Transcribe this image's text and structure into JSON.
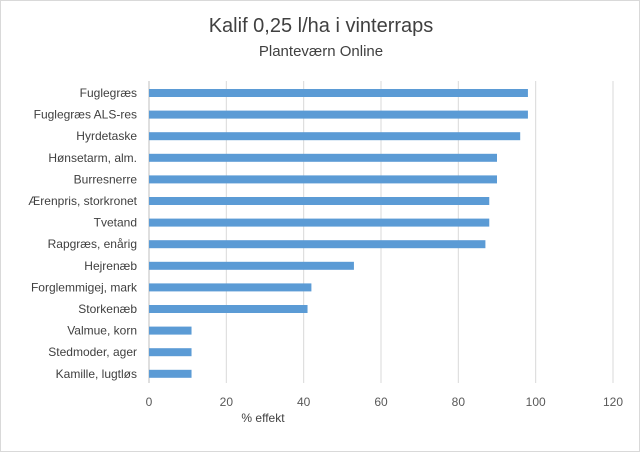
{
  "chart_data": {
    "type": "bar",
    "orientation": "horizontal",
    "title": "Kalif 0,25 l/ha i vinterraps",
    "subtitle": "Planteværn Online",
    "xlabel": "% effekt",
    "ylabel": "",
    "xlim": [
      0,
      120
    ],
    "xticks": [
      0,
      20,
      40,
      60,
      80,
      100,
      120
    ],
    "grid": true,
    "legend": "none",
    "bar_color": "#5b9bd5",
    "categories": [
      "Fuglegræs",
      "Fuglegræs ALS-res",
      "Hyrdetaske",
      "Hønsetarm, alm.",
      "Burresnerre",
      "Ærenpris, storkronet",
      "Tvetand",
      "Rapgræs, enårig",
      "Hejrenæb",
      "Forglemmigej, mark",
      "Storkenæb",
      "Valmue, korn",
      "Stedmoder, ager",
      "Kamille, lugtløs"
    ],
    "values": [
      98,
      98,
      96,
      90,
      90,
      88,
      88,
      87,
      53,
      42,
      41,
      11,
      11,
      11
    ]
  }
}
